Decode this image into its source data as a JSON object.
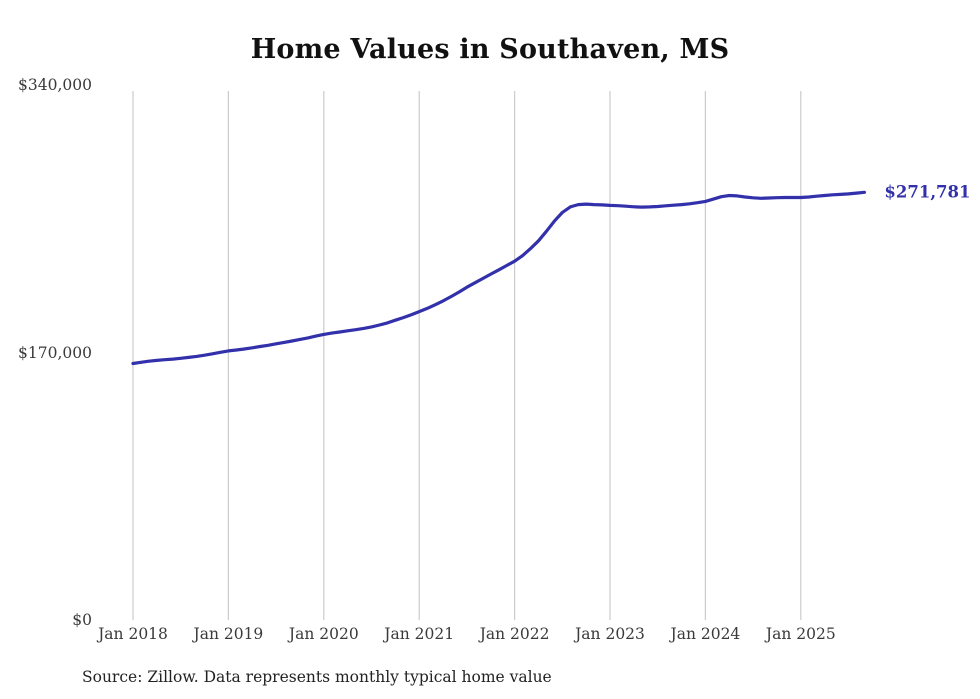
{
  "chart_data": {
    "type": "line",
    "title": "Home Values in Southaven, MS",
    "source_note": "Source: Zillow. Data represents monthly typical home value",
    "xlabel": "",
    "ylabel": "",
    "legend": false,
    "grid": "vertical-only",
    "colors": {
      "line": "#3231ab",
      "grid": "#cccccc",
      "annotation": "#3231ab"
    },
    "y_axis": {
      "max": 340000,
      "min": 0,
      "ticks": [
        {
          "label": "$0",
          "value": 0
        },
        {
          "label": "$170,000",
          "value": 170000
        },
        {
          "label": "$340,000",
          "value": 340000
        }
      ]
    },
    "x_axis": {
      "ticks": [
        "Jan 2018",
        "Jan 2019",
        "Jan 2020",
        "Jan 2021",
        "Jan 2022",
        "Jan 2023",
        "Jan 2024",
        "Jan 2025"
      ]
    },
    "annotation": {
      "label": "$271,781",
      "value": 271781
    },
    "series": [
      {
        "name": "Typical home value",
        "cadence": "monthly",
        "months": [
          "2018-01",
          "2018-02",
          "2018-03",
          "2018-04",
          "2018-05",
          "2018-06",
          "2018-07",
          "2018-08",
          "2018-09",
          "2018-10",
          "2018-11",
          "2018-12",
          "2019-01",
          "2019-02",
          "2019-03",
          "2019-04",
          "2019-05",
          "2019-06",
          "2019-07",
          "2019-08",
          "2019-09",
          "2019-10",
          "2019-11",
          "2019-12",
          "2020-01",
          "2020-02",
          "2020-03",
          "2020-04",
          "2020-05",
          "2020-06",
          "2020-07",
          "2020-08",
          "2020-09",
          "2020-10",
          "2020-11",
          "2020-12",
          "2021-01",
          "2021-02",
          "2021-03",
          "2021-04",
          "2021-05",
          "2021-06",
          "2021-07",
          "2021-08",
          "2021-09",
          "2021-10",
          "2021-11",
          "2021-12",
          "2022-01",
          "2022-02",
          "2022-03",
          "2022-04",
          "2022-05",
          "2022-06",
          "2022-07",
          "2022-08",
          "2022-09",
          "2022-10",
          "2022-11",
          "2022-12",
          "2023-01",
          "2023-02",
          "2023-03",
          "2023-04",
          "2023-05",
          "2023-06",
          "2023-07",
          "2023-08",
          "2023-09",
          "2023-10",
          "2023-11",
          "2023-12",
          "2024-01",
          "2024-02",
          "2024-03",
          "2024-04",
          "2024-05",
          "2024-06",
          "2024-07",
          "2024-08",
          "2024-09",
          "2024-10",
          "2024-11",
          "2024-12",
          "2025-01",
          "2025-02",
          "2025-03",
          "2025-04",
          "2025-05",
          "2025-06",
          "2025-07",
          "2025-08",
          "2025-09"
        ],
        "values": [
          163000,
          163800,
          164500,
          165000,
          165400,
          165800,
          166300,
          166900,
          167500,
          168300,
          169200,
          170100,
          171000,
          171600,
          172200,
          173000,
          173800,
          174600,
          175500,
          176400,
          177300,
          178300,
          179300,
          180400,
          181500,
          182300,
          183000,
          183800,
          184500,
          185300,
          186300,
          187500,
          188800,
          190500,
          192200,
          194000,
          196000,
          198000,
          200300,
          202800,
          205500,
          208400,
          211500,
          214300,
          217000,
          219800,
          222500,
          225300,
          228000,
          231500,
          236000,
          241000,
          247000,
          253500,
          259000,
          262500,
          264000,
          264300,
          264000,
          263800,
          263500,
          263300,
          263000,
          262600,
          262400,
          262500,
          262800,
          263200,
          263600,
          264000,
          264500,
          265200,
          266000,
          267500,
          269000,
          269800,
          269500,
          268800,
          268300,
          268000,
          268200,
          268400,
          268500,
          268500,
          268500,
          268800,
          269300,
          269800,
          270200,
          270500,
          270800,
          271300,
          271781
        ]
      }
    ]
  }
}
